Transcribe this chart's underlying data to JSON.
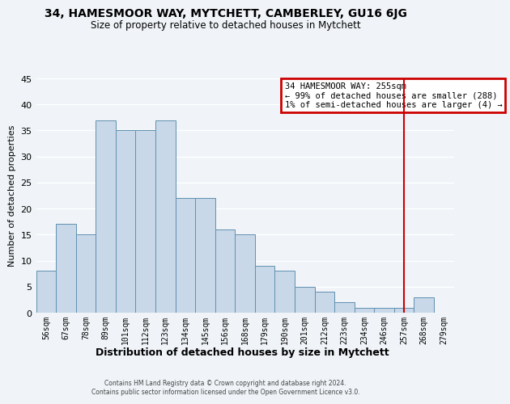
{
  "title": "34, HAMESMOOR WAY, MYTCHETT, CAMBERLEY, GU16 6JG",
  "subtitle": "Size of property relative to detached houses in Mytchett",
  "xlabel": "Distribution of detached houses by size in Mytchett",
  "ylabel": "Number of detached properties",
  "bar_labels": [
    "56sqm",
    "67sqm",
    "78sqm",
    "89sqm",
    "101sqm",
    "112sqm",
    "123sqm",
    "134sqm",
    "145sqm",
    "156sqm",
    "168sqm",
    "179sqm",
    "190sqm",
    "201sqm",
    "212sqm",
    "223sqm",
    "234sqm",
    "246sqm",
    "257sqm",
    "268sqm",
    "279sqm"
  ],
  "bar_values": [
    8,
    17,
    15,
    37,
    35,
    35,
    37,
    22,
    22,
    16,
    15,
    9,
    8,
    5,
    4,
    2,
    1,
    1,
    1,
    3,
    0
  ],
  "bar_color": "#c8d8e8",
  "bar_edge_color": "#6090b0",
  "ylim": [
    0,
    45
  ],
  "yticks": [
    0,
    5,
    10,
    15,
    20,
    25,
    30,
    35,
    40,
    45
  ],
  "vline_x_index": 18,
  "vline_color": "#cc0000",
  "legend_title": "34 HAMESMOOR WAY: 255sqm",
  "legend_line1": "← 99% of detached houses are smaller (288)",
  "legend_line2": "1% of semi-detached houses are larger (4) →",
  "legend_box_color": "#cc0000",
  "footer_line1": "Contains HM Land Registry data © Crown copyright and database right 2024.",
  "footer_line2": "Contains public sector information licensed under the Open Government Licence v3.0.",
  "background_color": "#f0f4f8"
}
